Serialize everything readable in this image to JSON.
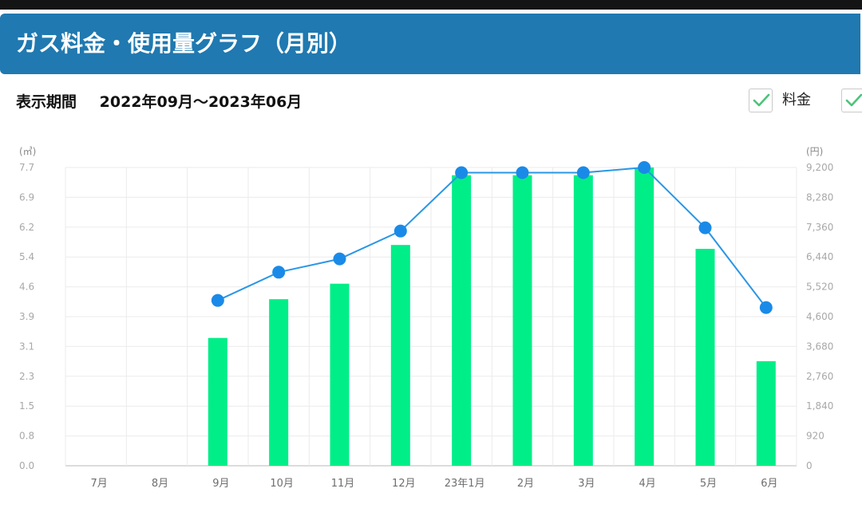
{
  "header": {
    "title": "ガス料金・使用量グラフ（月別）"
  },
  "period": {
    "label": "表示期間",
    "value": "2022年09月〜2023年06月"
  },
  "toggles": [
    {
      "label": "料金",
      "checked": true
    },
    {
      "label": "",
      "checked": true
    }
  ],
  "colors": {
    "header": "#2079b0",
    "bar": "#00ee88",
    "line": "#2a96e6",
    "point": "#1a8ae8",
    "check": "#4cc47a"
  },
  "chart_data": {
    "type": "bar",
    "categories": [
      "7月",
      "8月",
      "9月",
      "10月",
      "11月",
      "12月",
      "23年1月",
      "2月",
      "3月",
      "4月",
      "5月",
      "6月"
    ],
    "series": [
      {
        "name": "",
        "type": "bar",
        "axis": "left",
        "values": [
          null,
          null,
          3.3,
          4.3,
          4.7,
          5.7,
          7.5,
          7.5,
          7.5,
          7.7,
          5.6,
          2.7
        ]
      },
      {
        "name": "",
        "type": "line",
        "axis": "right",
        "values": [
          null,
          null,
          5100,
          5970,
          6380,
          7240,
          9040,
          9040,
          9040,
          9200,
          7340,
          4880
        ]
      }
    ],
    "y_left": {
      "unit": "(㎥)",
      "ticks": [
        "0.0",
        "0.8",
        "1.5",
        "2.3",
        "3.1",
        "3.9",
        "4.6",
        "5.4",
        "6.2",
        "6.9",
        "7.7"
      ],
      "ylim": [
        0,
        7.7
      ]
    },
    "y_right": {
      "unit": "(円)",
      "ticks": [
        "0",
        "920",
        "1,840",
        "2,760",
        "3,680",
        "4,600",
        "5,520",
        "6,440",
        "7,360",
        "8,280",
        "9,200"
      ],
      "ylim": [
        0,
        9200
      ]
    },
    "grid": true
  }
}
